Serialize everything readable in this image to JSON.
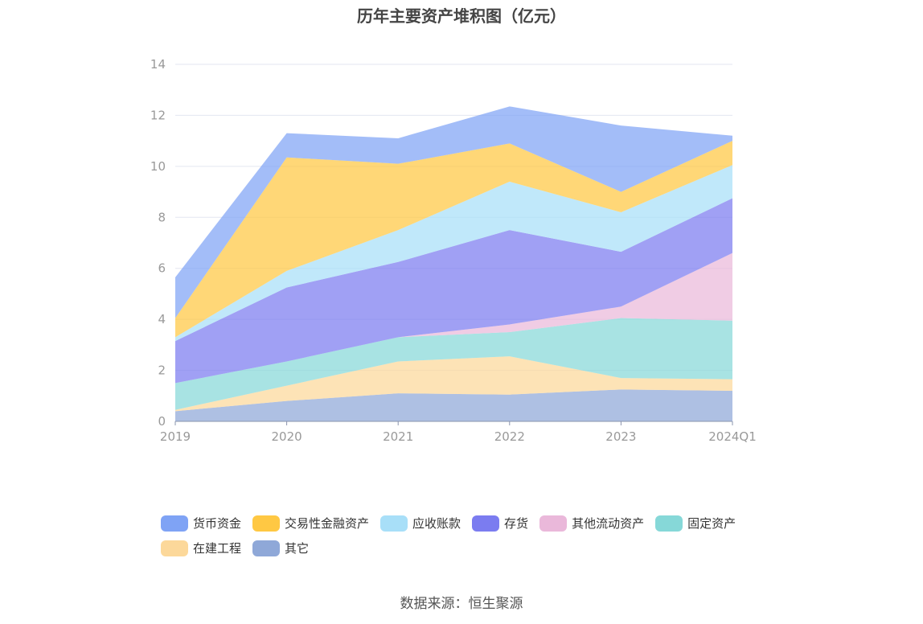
{
  "chart_data": {
    "type": "area",
    "title": "历年主要资产堆积图（亿元）",
    "categories": [
      "2019",
      "2020",
      "2021",
      "2022",
      "2023",
      "2024Q1"
    ],
    "ylim": [
      0,
      14
    ],
    "yticks": [
      0,
      2,
      4,
      6,
      8,
      10,
      12,
      14
    ],
    "stacked": true,
    "grid": true,
    "legend_position": "bottom",
    "series": [
      {
        "name": "其它",
        "color": "#8fa8d8",
        "values": [
          0.4,
          0.8,
          1.1,
          1.05,
          1.25,
          1.2
        ]
      },
      {
        "name": "在建工程",
        "color": "#fcd89a",
        "values": [
          0.05,
          0.6,
          1.25,
          1.5,
          0.45,
          0.45
        ]
      },
      {
        "name": "固定资产",
        "color": "#86d8d8",
        "values": [
          1.05,
          0.95,
          0.95,
          0.95,
          2.35,
          2.3
        ]
      },
      {
        "name": "其他流动资产",
        "color": "#eab8da",
        "values": [
          0.0,
          0.0,
          0.0,
          0.3,
          0.45,
          2.65
        ]
      },
      {
        "name": "存货",
        "color": "#7b7cf0",
        "values": [
          1.65,
          2.9,
          2.95,
          3.7,
          2.15,
          2.15
        ]
      },
      {
        "name": "应收账款",
        "color": "#a8dff8",
        "values": [
          0.15,
          0.65,
          1.25,
          1.9,
          1.55,
          1.3
        ]
      },
      {
        "name": "交易性金融资产",
        "color": "#ffc843",
        "values": [
          0.75,
          4.45,
          2.6,
          1.5,
          0.8,
          0.95
        ]
      },
      {
        "name": "货币资金",
        "color": "#7fa3f5",
        "values": [
          1.6,
          0.95,
          1.0,
          1.45,
          2.6,
          0.2
        ]
      }
    ],
    "legend_order": [
      "货币资金",
      "交易性金融资产",
      "应收账款",
      "存货",
      "其他流动资产",
      "固定资产",
      "在建工程",
      "其它"
    ]
  },
  "source_text": "数据来源：恒生聚源"
}
